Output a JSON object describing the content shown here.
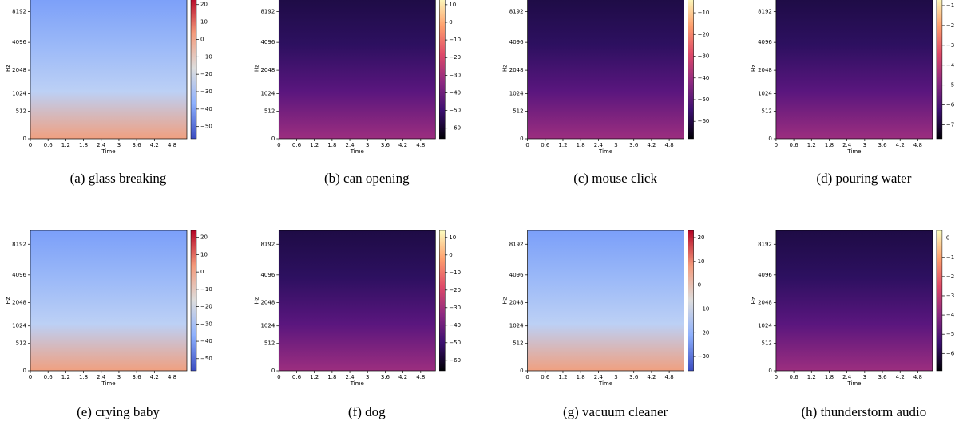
{
  "chart_data": [
    {
      "type": "heatmap",
      "caption": "(a) glass breaking",
      "colormap": "coolwarm",
      "x_label": "Time",
      "y_label": "Hz",
      "yscale": "mel",
      "xlim": [
        0,
        5.3
      ],
      "xticks": [
        0,
        0.6,
        1.2,
        1.8,
        2.4,
        3,
        3.6,
        4.2,
        4.8
      ],
      "ylim": [
        0,
        11025
      ],
      "yticks": [
        0,
        512,
        1024,
        2048,
        4096,
        8192
      ],
      "colorbar": {
        "lim": [
          -57,
          24
        ],
        "ticks": [
          20,
          10,
          0,
          {
            "value": -10,
            "label": "−10"
          },
          {
            "value": -20,
            "label": "−20"
          },
          {
            "value": -30,
            "label": "−30"
          },
          {
            "value": -40,
            "label": "−40"
          },
          {
            "value": -50,
            "label": "−50"
          }
        ]
      }
    },
    {
      "type": "heatmap",
      "caption": "(b) can opening",
      "colormap": "magma",
      "x_label": "Time",
      "y_label": "Hz",
      "yscale": "mel",
      "xlim": [
        0,
        5.3
      ],
      "xticks": [
        0,
        0.6,
        1.2,
        1.8,
        2.4,
        3,
        3.6,
        4.2,
        4.8
      ],
      "ylim": [
        0,
        11025
      ],
      "yticks": [
        0,
        512,
        1024,
        2048,
        4096,
        8192
      ],
      "colorbar": {
        "lim": [
          -66,
          14
        ],
        "ticks": [
          10,
          0,
          {
            "value": -10,
            "label": "−10"
          },
          {
            "value": -20,
            "label": "−20"
          },
          {
            "value": -30,
            "label": "−30"
          },
          {
            "value": -40,
            "label": "−40"
          },
          {
            "value": -50,
            "label": "−50"
          },
          {
            "value": -60,
            "label": "−60"
          }
        ]
      }
    },
    {
      "type": "heatmap",
      "caption": "(c) mouse click",
      "colormap": "magma",
      "x_label": "Time",
      "y_label": "Hz",
      "yscale": "mel",
      "xlim": [
        0,
        5.3
      ],
      "xticks": [
        0,
        0.6,
        1.2,
        1.8,
        2.4,
        3,
        3.6,
        4.2,
        4.8
      ],
      "ylim": [
        0,
        11025
      ],
      "yticks": [
        0,
        512,
        1024,
        2048,
        4096,
        8192
      ],
      "colorbar": {
        "lim": [
          -68,
          -3
        ],
        "ticks": [
          {
            "value": -10,
            "label": "−10"
          },
          {
            "value": -20,
            "label": "−20"
          },
          {
            "value": -30,
            "label": "−30"
          },
          {
            "value": -40,
            "label": "−40"
          },
          {
            "value": -50,
            "label": "−50"
          },
          {
            "value": -60,
            "label": "−60"
          }
        ]
      }
    },
    {
      "type": "heatmap",
      "caption": "(d) pouring water",
      "colormap": "magma",
      "x_label": "Time",
      "y_label": "Hz",
      "yscale": "mel",
      "xlim": [
        0,
        5.3
      ],
      "xticks": [
        0,
        0.6,
        1.2,
        1.8,
        2.4,
        3,
        3.6,
        4.2,
        4.8
      ],
      "ylim": [
        0,
        11025
      ],
      "yticks": [
        0,
        512,
        1024,
        2048,
        4096,
        8192
      ],
      "colorbar": {
        "lim": [
          -7.7,
          -0.6
        ],
        "ticks": [
          {
            "value": -1,
            "label": "−1"
          },
          {
            "value": -2,
            "label": "−2"
          },
          {
            "value": -3,
            "label": "−3"
          },
          {
            "value": -4,
            "label": "−4"
          },
          {
            "value": -5,
            "label": "−5"
          },
          {
            "value": -6,
            "label": "−6"
          },
          {
            "value": -7,
            "label": "−7"
          }
        ]
      }
    },
    {
      "type": "heatmap",
      "caption": "(e) crying baby",
      "colormap": "coolwarm",
      "x_label": "Time",
      "y_label": "Hz",
      "yscale": "mel",
      "xlim": [
        0,
        5.3
      ],
      "xticks": [
        0,
        0.6,
        1.2,
        1.8,
        2.4,
        3,
        3.6,
        4.2,
        4.8
      ],
      "ylim": [
        0,
        11025
      ],
      "yticks": [
        0,
        512,
        1024,
        2048,
        4096,
        8192
      ],
      "colorbar": {
        "lim": [
          -57,
          24
        ],
        "ticks": [
          20,
          10,
          0,
          {
            "value": -10,
            "label": "−10"
          },
          {
            "value": -20,
            "label": "−20"
          },
          {
            "value": -30,
            "label": "−30"
          },
          {
            "value": -40,
            "label": "−40"
          },
          {
            "value": -50,
            "label": "−50"
          }
        ]
      }
    },
    {
      "type": "heatmap",
      "caption": "(f) dog",
      "colormap": "magma",
      "x_label": "Time",
      "y_label": "Hz",
      "yscale": "mel",
      "xlim": [
        0,
        5.3
      ],
      "xticks": [
        0,
        0.6,
        1.2,
        1.8,
        2.4,
        3,
        3.6,
        4.2,
        4.8
      ],
      "ylim": [
        0,
        11025
      ],
      "yticks": [
        0,
        512,
        1024,
        2048,
        4096,
        8192
      ],
      "colorbar": {
        "lim": [
          -66,
          14
        ],
        "ticks": [
          10,
          0,
          {
            "value": -10,
            "label": "−10"
          },
          {
            "value": -20,
            "label": "−20"
          },
          {
            "value": -30,
            "label": "−30"
          },
          {
            "value": -40,
            "label": "−40"
          },
          {
            "value": -50,
            "label": "−50"
          },
          {
            "value": -60,
            "label": "−60"
          }
        ]
      }
    },
    {
      "type": "heatmap",
      "caption": "(g) vacuum cleaner",
      "colormap": "coolwarm",
      "x_label": "Time",
      "y_label": "Hz",
      "yscale": "mel",
      "xlim": [
        0,
        5.3
      ],
      "xticks": [
        0,
        0.6,
        1.2,
        1.8,
        2.4,
        3,
        3.6,
        4.2,
        4.8
      ],
      "ylim": [
        0,
        11025
      ],
      "yticks": [
        0,
        512,
        1024,
        2048,
        4096,
        8192
      ],
      "colorbar": {
        "lim": [
          -36,
          23
        ],
        "ticks": [
          20,
          10,
          0,
          {
            "value": -10,
            "label": "−10"
          },
          {
            "value": -20,
            "label": "−20"
          },
          {
            "value": -30,
            "label": "−30"
          }
        ]
      }
    },
    {
      "type": "heatmap",
      "caption": "(h) thunderstorm audio",
      "colormap": "magma",
      "x_label": "Time",
      "y_label": "Hz",
      "yscale": "mel",
      "xlim": [
        0,
        5.3
      ],
      "xticks": [
        0,
        0.6,
        1.2,
        1.8,
        2.4,
        3,
        3.6,
        4.2,
        4.8
      ],
      "ylim": [
        0,
        11025
      ],
      "yticks": [
        0,
        512,
        1024,
        2048,
        4096,
        8192
      ],
      "colorbar": {
        "lim": [
          -6.9,
          0.4
        ],
        "ticks": [
          0,
          {
            "value": -1,
            "label": "−1"
          },
          {
            "value": -2,
            "label": "−2"
          },
          {
            "value": -3,
            "label": "−3"
          },
          {
            "value": -4,
            "label": "−4"
          },
          {
            "value": -5,
            "label": "−5"
          },
          {
            "value": -6,
            "label": "−6"
          }
        ]
      }
    }
  ]
}
